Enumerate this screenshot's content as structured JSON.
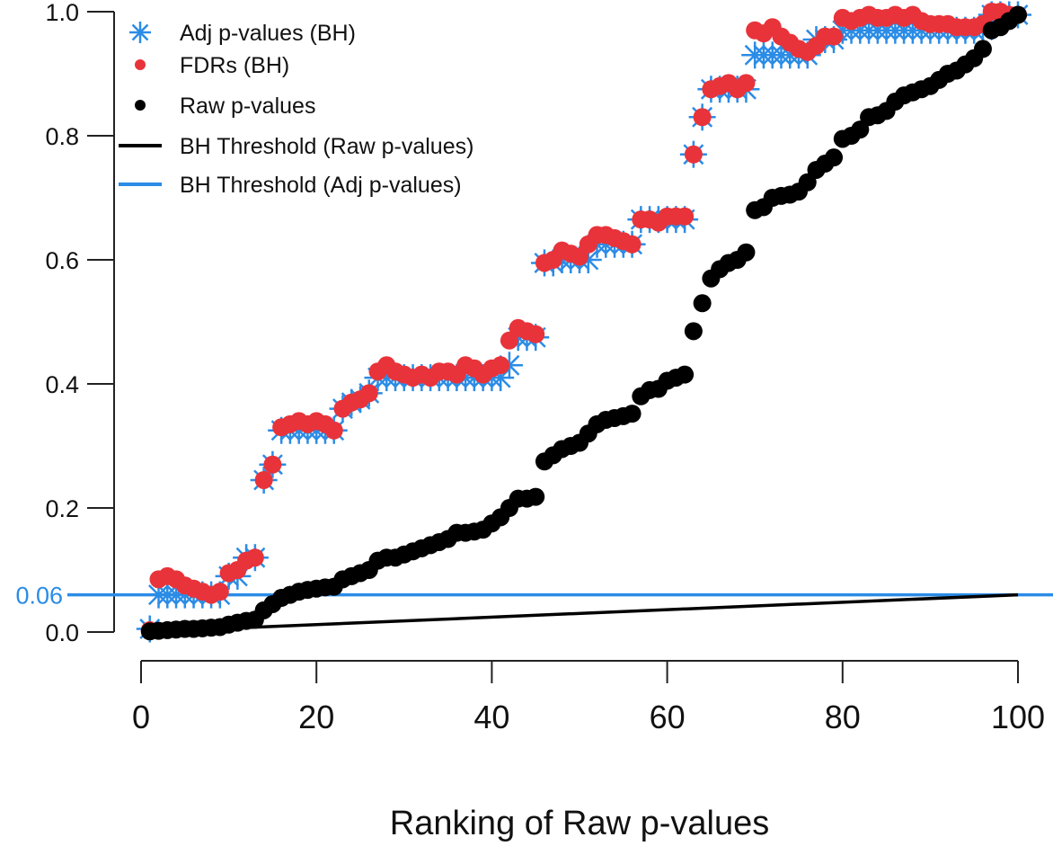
{
  "chart_data": {
    "type": "scatter",
    "xlabel": "Ranking of Raw p-values",
    "ylabel": "",
    "xlim": [
      0,
      100
    ],
    "ylim": [
      0,
      1.0
    ],
    "x_ticks": [
      "0",
      "20",
      "40",
      "60",
      "80",
      "100"
    ],
    "y_ticks": [
      "0.0",
      "0.2",
      "0.4",
      "0.6",
      "0.8",
      "1.0"
    ],
    "y_extra_tick": {
      "label": "0.06",
      "value": 0.06,
      "color": "#2b8ce6"
    },
    "grid": false,
    "legend_placement": "top-left",
    "colors": {
      "adj": "#2b8ce6",
      "fdr": "#e8333a",
      "raw": "#000000",
      "raw_threshold": "#000000",
      "adj_threshold": "#2b8ce6"
    },
    "legend": [
      {
        "label": "Adj p-values (BH)",
        "marker": "asterisk"
      },
      {
        "label": "FDRs (BH)",
        "marker": "dot-red"
      },
      {
        "label": "Raw p-values",
        "marker": "dot-black"
      },
      {
        "label": "BH Threshold (Raw p-values)",
        "marker": "line-black"
      },
      {
        "label": "BH Threshold (Adj p-values)",
        "marker": "line-blue"
      }
    ],
    "series": [
      {
        "name": "Adj p-values (BH)",
        "values": [
          0.005,
          0.06,
          0.06,
          0.06,
          0.06,
          0.06,
          0.06,
          0.06,
          0.06,
          0.09,
          0.09,
          0.12,
          0.12,
          0.245,
          0.27,
          0.325,
          0.325,
          0.325,
          0.325,
          0.325,
          0.325,
          0.325,
          0.36,
          0.37,
          0.375,
          0.385,
          0.41,
          0.41,
          0.41,
          0.41,
          0.41,
          0.41,
          0.41,
          0.41,
          0.41,
          0.41,
          0.41,
          0.41,
          0.41,
          0.41,
          0.41,
          0.43,
          0.475,
          0.475,
          0.475,
          0.595,
          0.595,
          0.6,
          0.6,
          0.6,
          0.6,
          0.625,
          0.625,
          0.625,
          0.625,
          0.625,
          0.665,
          0.665,
          0.665,
          0.665,
          0.665,
          0.665,
          0.77,
          0.83,
          0.875,
          0.875,
          0.875,
          0.875,
          0.875,
          0.93,
          0.93,
          0.93,
          0.93,
          0.93,
          0.93,
          0.93,
          0.955,
          0.955,
          0.955,
          0.97,
          0.97,
          0.97,
          0.97,
          0.97,
          0.97,
          0.97,
          0.97,
          0.97,
          0.97,
          0.97,
          0.97,
          0.97,
          0.97,
          0.97,
          0.97,
          0.97,
          0.995,
          0.995,
          0.995,
          0.995
        ]
      },
      {
        "name": "FDRs (BH)",
        "values": [
          0.003,
          0.085,
          0.09,
          0.085,
          0.075,
          0.07,
          0.065,
          0.06,
          0.065,
          0.095,
          0.1,
          0.115,
          0.12,
          0.245,
          0.27,
          0.33,
          0.335,
          0.34,
          0.335,
          0.34,
          0.335,
          0.325,
          0.36,
          0.37,
          0.375,
          0.385,
          0.42,
          0.43,
          0.42,
          0.415,
          0.41,
          0.415,
          0.41,
          0.42,
          0.42,
          0.415,
          0.43,
          0.425,
          0.415,
          0.425,
          0.43,
          0.47,
          0.49,
          0.485,
          0.48,
          0.595,
          0.6,
          0.615,
          0.61,
          0.605,
          0.625,
          0.64,
          0.64,
          0.635,
          0.63,
          0.625,
          0.665,
          0.665,
          0.66,
          0.67,
          0.67,
          0.67,
          0.77,
          0.83,
          0.875,
          0.88,
          0.885,
          0.875,
          0.885,
          0.97,
          0.965,
          0.975,
          0.96,
          0.95,
          0.94,
          0.935,
          0.945,
          0.96,
          0.96,
          0.99,
          0.985,
          0.99,
          0.995,
          0.99,
          0.99,
          0.995,
          0.99,
          0.995,
          0.985,
          0.98,
          0.98,
          0.98,
          0.975,
          0.975,
          0.975,
          0.98,
          1.0,
          1.0,
          0.995,
          0.995
        ]
      },
      {
        "name": "Raw p-values",
        "values": [
          0.001,
          0.002,
          0.003,
          0.004,
          0.005,
          0.005,
          0.006,
          0.007,
          0.008,
          0.012,
          0.015,
          0.018,
          0.02,
          0.035,
          0.045,
          0.055,
          0.06,
          0.065,
          0.068,
          0.07,
          0.072,
          0.073,
          0.085,
          0.09,
          0.095,
          0.1,
          0.115,
          0.12,
          0.12,
          0.125,
          0.13,
          0.135,
          0.14,
          0.145,
          0.15,
          0.16,
          0.16,
          0.162,
          0.165,
          0.175,
          0.185,
          0.2,
          0.215,
          0.215,
          0.218,
          0.275,
          0.285,
          0.295,
          0.3,
          0.305,
          0.32,
          0.335,
          0.342,
          0.345,
          0.348,
          0.352,
          0.38,
          0.39,
          0.392,
          0.405,
          0.41,
          0.415,
          0.485,
          0.53,
          0.57,
          0.585,
          0.595,
          0.6,
          0.612,
          0.68,
          0.685,
          0.7,
          0.703,
          0.705,
          0.71,
          0.725,
          0.745,
          0.755,
          0.765,
          0.795,
          0.8,
          0.81,
          0.83,
          0.833,
          0.84,
          0.855,
          0.865,
          0.87,
          0.875,
          0.88,
          0.89,
          0.9,
          0.905,
          0.915,
          0.925,
          0.94,
          0.97,
          0.975,
          0.985,
          0.995
        ]
      }
    ],
    "lines": [
      {
        "name": "BH Threshold (Raw p-values)",
        "x": [
          1,
          100
        ],
        "y": [
          0.0006,
          0.06
        ]
      },
      {
        "name": "BH Threshold (Adj p-values)",
        "y": 0.06
      }
    ]
  }
}
